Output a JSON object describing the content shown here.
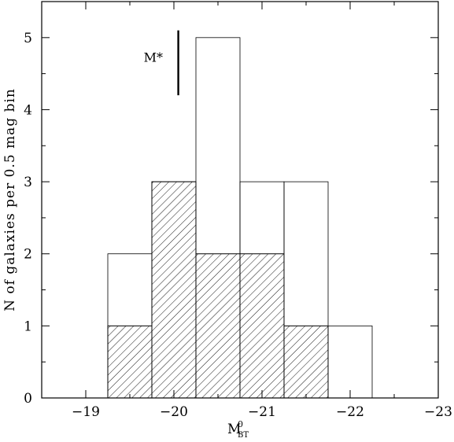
{
  "chart_data": {
    "type": "histogram",
    "xlabel": {
      "main": "M",
      "sup": "0",
      "sub": "BT"
    },
    "ylabel": "N of galaxies per 0.5 mag bin",
    "xlim": [
      -18.5,
      -23
    ],
    "ylim": [
      0,
      5.5
    ],
    "x_ticks": [
      -19,
      -20,
      -21,
      -22,
      -23
    ],
    "x_tick_labels": [
      "−19",
      "−20",
      "−21",
      "−22",
      "−23"
    ],
    "y_ticks": [
      0,
      1,
      2,
      3,
      4,
      5
    ],
    "y_tick_labels": [
      "0",
      "1",
      "2",
      "3",
      "4",
      "5"
    ],
    "bin_width": 0.5,
    "series": [
      {
        "style": "open",
        "bin_lefts": [
          -19.25,
          -19.75,
          -20.25,
          -20.75,
          -21.25,
          -21.75
        ],
        "values": [
          2,
          3,
          5,
          3,
          3,
          1
        ]
      },
      {
        "style": "hatched",
        "bin_lefts": [
          -19.25,
          -19.75,
          -20.25,
          -20.75,
          -21.25
        ],
        "values": [
          1,
          3,
          2,
          2,
          1
        ]
      }
    ],
    "annotations": [
      {
        "text": "M*",
        "x": -20.05,
        "y_range": [
          4.2,
          5.1
        ]
      }
    ],
    "grid": false
  }
}
